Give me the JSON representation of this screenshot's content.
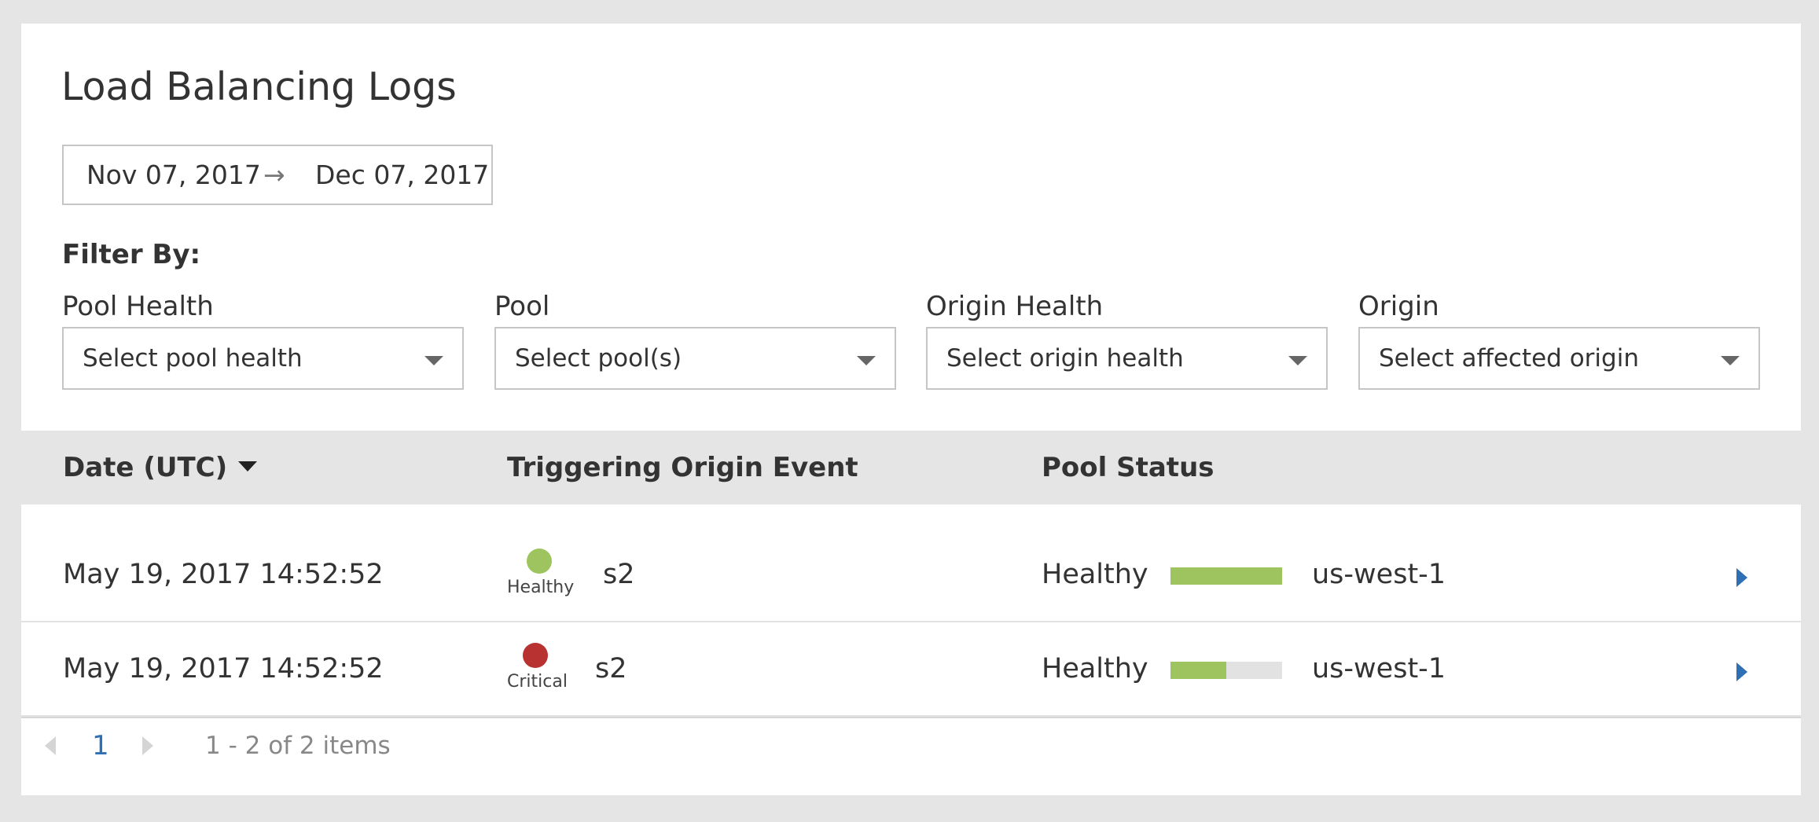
{
  "page": {
    "title": "Load Balancing Logs"
  },
  "date_range": {
    "start": "Nov 07, 2017",
    "arrow": "→",
    "end": "Dec 07, 2017"
  },
  "filters": {
    "heading": "Filter By:",
    "items": [
      {
        "label": "Pool Health",
        "placeholder": "Select pool health"
      },
      {
        "label": "Pool",
        "placeholder": "Select pool(s)"
      },
      {
        "label": "Origin Health",
        "placeholder": "Select origin health"
      },
      {
        "label": "Origin",
        "placeholder": "Select affected origin"
      }
    ]
  },
  "table": {
    "columns": {
      "date": "Date (UTC)",
      "event": "Triggering Origin Event",
      "status": "Pool Status"
    },
    "sort": {
      "column": "date",
      "direction": "descending"
    },
    "rows": [
      {
        "date": "May 19, 2017 14:52:52",
        "origin_health": "Healthy",
        "origin_health_color": "#9dc45f",
        "origin": "s2",
        "pool_health": "Healthy",
        "pool_health_fraction": 1.0,
        "pool": "us-west-1"
      },
      {
        "date": "May 19, 2017 14:52:52",
        "origin_health": "Critical",
        "origin_health_color": "#b83232",
        "origin": "s2",
        "pool_health": "Healthy",
        "pool_health_fraction": 0.5,
        "pool": "us-west-1"
      }
    ]
  },
  "pagination": {
    "current_page": "1",
    "summary": "1 - 2 of 2 items"
  },
  "colors": {
    "accent": "#2f6fb4",
    "healthy": "#9dc45f",
    "critical": "#b83232",
    "header_bg": "#e5e5e5"
  },
  "icons": {
    "date_arrow": "arrow-right-icon",
    "select_caret": "caret-down-icon",
    "sort": "sort-descending-icon",
    "row_expand": "chevron-right-icon",
    "pager_prev": "chevron-left-icon",
    "pager_next": "chevron-right-icon"
  }
}
